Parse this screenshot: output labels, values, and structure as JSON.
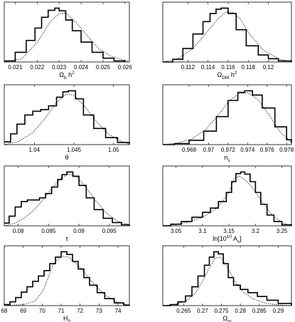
{
  "chart_data": [
    {
      "type": "line",
      "xlabel": "Ω_b h^2",
      "xlabel_parts": {
        "base": "Ω",
        "sub": "b",
        "rest": " h",
        "sup": "2"
      },
      "xlim": [
        0.0205,
        0.0262
      ],
      "xticks": [
        0.021,
        0.022,
        0.023,
        0.024,
        0.025,
        0.026
      ],
      "xtick_labels": [
        "0.021",
        "0.022",
        "0.023",
        "0.024",
        "0.025",
        "0.026"
      ],
      "series": [
        {
          "style": "solid-step",
          "x": [
            0.0205,
            0.021,
            0.0215,
            0.0219,
            0.0222,
            0.0225,
            0.0228,
            0.023,
            0.0233,
            0.0236,
            0.024,
            0.0245,
            0.025,
            0.0255,
            0.026
          ],
          "y": [
            0.02,
            0.18,
            0.4,
            0.63,
            0.83,
            0.96,
            1.0,
            0.95,
            0.78,
            0.58,
            0.37,
            0.18,
            0.07,
            0.02,
            0.0
          ]
        },
        {
          "style": "dotted",
          "x": [
            0.0205,
            0.0213,
            0.022,
            0.0226,
            0.023,
            0.0233,
            0.0238,
            0.0243,
            0.0248,
            0.0253,
            0.0258,
            0.0262
          ],
          "y": [
            0.0,
            0.06,
            0.36,
            0.75,
            0.9,
            0.91,
            0.72,
            0.48,
            0.25,
            0.12,
            0.05,
            0.01
          ]
        }
      ]
    },
    {
      "type": "line",
      "xlabel": "Ω_DM h^2",
      "xlabel_parts": {
        "base": "Ω",
        "sub": "DM",
        "rest": " h",
        "sup": "2"
      },
      "xlim": [
        0.1095,
        0.1223
      ],
      "xticks": [
        0.112,
        0.114,
        0.116,
        0.118,
        0.12
      ],
      "xtick_labels": [
        "0.112",
        "0.114",
        "0.116",
        "0.118",
        "0.12"
      ],
      "series": [
        {
          "style": "solid-step",
          "x": [
            0.1095,
            0.1105,
            0.1115,
            0.1125,
            0.1135,
            0.1142,
            0.1148,
            0.1153,
            0.116,
            0.1168,
            0.1178,
            0.119,
            0.12,
            0.121,
            0.1223
          ],
          "y": [
            0.0,
            0.05,
            0.25,
            0.52,
            0.75,
            0.9,
            0.98,
            1.0,
            0.9,
            0.6,
            0.3,
            0.13,
            0.06,
            0.02,
            0.0
          ]
        },
        {
          "style": "dotted",
          "x": [
            0.1095,
            0.111,
            0.1125,
            0.114,
            0.115,
            0.1158,
            0.1165,
            0.1172,
            0.1182,
            0.1195,
            0.121,
            0.1223
          ],
          "y": [
            0.0,
            0.06,
            0.25,
            0.58,
            0.8,
            0.93,
            0.92,
            0.8,
            0.5,
            0.22,
            0.06,
            0.0
          ]
        }
      ]
    },
    {
      "type": "line",
      "xlabel": "θ",
      "xlabel_parts": {
        "base": "θ",
        "sub": "",
        "rest": "",
        "sup": ""
      },
      "xlim": [
        1.0362,
        1.052
      ],
      "xticks": [
        1.04,
        1.045,
        1.05
      ],
      "xtick_labels": [
        "1.04",
        "1.045",
        "1.05"
      ],
      "series": [
        {
          "style": "solid-step",
          "x": [
            1.0362,
            1.037,
            1.0378,
            1.0388,
            1.0398,
            1.0408,
            1.0418,
            1.0428,
            1.0436,
            1.0443,
            1.0452,
            1.0462,
            1.0475,
            1.049,
            1.0505,
            1.052
          ],
          "y": [
            0.05,
            0.2,
            0.38,
            0.55,
            0.62,
            0.65,
            0.72,
            0.88,
            0.98,
            1.0,
            0.85,
            0.55,
            0.3,
            0.13,
            0.04,
            0.0
          ]
        },
        {
          "style": "dotted",
          "x": [
            1.0362,
            1.038,
            1.0398,
            1.0413,
            1.0428,
            1.044,
            1.045,
            1.0465,
            1.048,
            1.0495,
            1.051,
            1.052
          ],
          "y": [
            0.0,
            0.06,
            0.22,
            0.48,
            0.78,
            0.94,
            0.92,
            0.68,
            0.4,
            0.18,
            0.06,
            0.01
          ]
        }
      ]
    },
    {
      "type": "line",
      "xlabel": "n_s",
      "xlabel_parts": {
        "base": "n",
        "sub": "s",
        "rest": "",
        "sup": ""
      },
      "xlim": [
        0.9653,
        0.9785
      ],
      "xticks": [
        0.968,
        0.97,
        0.972,
        0.974,
        0.976,
        0.978
      ],
      "xtick_labels": [
        "0.968",
        "0.97",
        "0.972",
        "0.974",
        "0.976",
        "0.978"
      ],
      "series": [
        {
          "style": "solid-step",
          "x": [
            0.9653,
            0.9665,
            0.968,
            0.9695,
            0.9708,
            0.972,
            0.973,
            0.9737,
            0.9745,
            0.9755,
            0.9768,
            0.978,
            0.9785
          ],
          "y": [
            0.0,
            0.02,
            0.08,
            0.25,
            0.52,
            0.82,
            0.97,
            1.0,
            0.92,
            0.68,
            0.33,
            0.09,
            0.03
          ]
        },
        {
          "style": "dotted",
          "x": [
            0.9653,
            0.9668,
            0.9682,
            0.9697,
            0.971,
            0.9722,
            0.9732,
            0.974,
            0.975,
            0.9762,
            0.9774,
            0.9785
          ],
          "y": [
            0.0,
            0.03,
            0.1,
            0.28,
            0.55,
            0.83,
            0.95,
            0.96,
            0.85,
            0.55,
            0.22,
            0.05
          ]
        }
      ]
    },
    {
      "type": "line",
      "xlabel": "τ",
      "xlabel_parts": {
        "base": "τ",
        "sub": "",
        "rest": "",
        "sup": ""
      },
      "xlim": [
        0.0777,
        0.0983
      ],
      "xticks": [
        0.08,
        0.085,
        0.09,
        0.095
      ],
      "xtick_labels": [
        "0.08",
        "0.085",
        "0.09",
        "0.095"
      ],
      "series": [
        {
          "style": "solid-step",
          "x": [
            0.0777,
            0.0785,
            0.0795,
            0.0805,
            0.0815,
            0.0825,
            0.0835,
            0.0845,
            0.0855,
            0.0865,
            0.0872,
            0.088,
            0.089,
            0.09,
            0.0912,
            0.0925,
            0.094,
            0.0955,
            0.097,
            0.0983
          ],
          "y": [
            0.05,
            0.18,
            0.35,
            0.45,
            0.48,
            0.48,
            0.52,
            0.6,
            0.72,
            0.86,
            0.95,
            1.0,
            0.92,
            0.75,
            0.52,
            0.3,
            0.14,
            0.06,
            0.02,
            0.0
          ]
        },
        {
          "style": "dotted",
          "x": [
            0.0777,
            0.0795,
            0.0812,
            0.0828,
            0.0842,
            0.0856,
            0.087,
            0.0882,
            0.0895,
            0.091,
            0.0928,
            0.0945,
            0.0963,
            0.0983
          ],
          "y": [
            0.0,
            0.05,
            0.16,
            0.32,
            0.5,
            0.7,
            0.88,
            0.96,
            0.92,
            0.74,
            0.46,
            0.24,
            0.09,
            0.02
          ]
        }
      ]
    },
    {
      "type": "line",
      "xlabel": "ln[10^10 A_s]",
      "xlabel_parts": {
        "base": "ln[10",
        "sup": "10",
        "mid": " A",
        "sub": "s",
        "rest": "]"
      },
      "xlim": [
        3.025,
        3.268
      ],
      "xticks": [
        3.05,
        3.1,
        3.15,
        3.2,
        3.25
      ],
      "xtick_labels": [
        "3.05",
        "3.1",
        "3.15",
        "3.2",
        "3.25"
      ],
      "series": [
        {
          "style": "solid-step",
          "x": [
            3.025,
            3.04,
            3.06,
            3.08,
            3.1,
            3.115,
            3.13,
            3.145,
            3.155,
            3.163,
            3.172,
            3.18,
            3.19,
            3.2,
            3.21,
            3.222,
            3.235,
            3.25,
            3.268
          ],
          "y": [
            0.0,
            0.03,
            0.08,
            0.16,
            0.25,
            0.33,
            0.45,
            0.62,
            0.82,
            0.97,
            1.0,
            0.96,
            0.82,
            0.62,
            0.4,
            0.2,
            0.08,
            0.02,
            0.0
          ]
        },
        {
          "style": "dotted",
          "x": [
            3.025,
            3.045,
            3.07,
            3.095,
            3.115,
            3.13,
            3.14,
            3.15,
            3.16,
            3.17,
            3.18,
            3.195,
            3.21,
            3.23,
            3.25,
            3.268
          ],
          "y": [
            0.0,
            0.02,
            0.06,
            0.14,
            0.24,
            0.36,
            0.48,
            0.62,
            0.88,
            0.92,
            0.86,
            0.7,
            0.48,
            0.22,
            0.06,
            0.0
          ]
        }
      ]
    },
    {
      "type": "line",
      "xlabel": "H_0",
      "xlabel_parts": {
        "base": "H",
        "sub": "0",
        "rest": "",
        "sup": ""
      },
      "xlim": [
        68.0,
        74.6
      ],
      "xticks": [
        68,
        69,
        70,
        71,
        72,
        73,
        74
      ],
      "xtick_labels": [
        "68",
        "69",
        "70",
        "71",
        "72",
        "73",
        "74"
      ],
      "series": [
        {
          "style": "solid-step",
          "x": [
            68.0,
            68.3,
            68.6,
            68.9,
            69.2,
            69.5,
            69.8,
            70.1,
            70.4,
            70.7,
            71.0,
            71.3,
            71.6,
            71.9,
            72.2,
            72.5,
            72.9,
            73.3,
            73.8,
            74.3,
            74.6
          ],
          "y": [
            0.02,
            0.07,
            0.15,
            0.25,
            0.35,
            0.45,
            0.55,
            0.65,
            0.78,
            0.9,
            1.0,
            0.95,
            0.82,
            0.68,
            0.52,
            0.38,
            0.24,
            0.13,
            0.05,
            0.01,
            0.0
          ]
        },
        {
          "style": "dotted",
          "x": [
            68.0,
            69.0,
            69.6,
            70.0,
            70.3,
            70.6,
            71.0,
            71.4,
            71.8,
            72.3,
            72.8,
            73.3,
            73.9,
            74.6
          ],
          "y": [
            0.0,
            0.02,
            0.08,
            0.25,
            0.5,
            0.78,
            0.92,
            0.9,
            0.78,
            0.58,
            0.38,
            0.2,
            0.07,
            0.01
          ]
        }
      ]
    },
    {
      "type": "line",
      "xlabel": "Ω_m",
      "xlabel_parts": {
        "base": "Ω",
        "sub": "m",
        "rest": "",
        "sup": ""
      },
      "xlim": [
        0.2595,
        0.2935
      ],
      "xticks": [
        0.265,
        0.27,
        0.275,
        0.28,
        0.285,
        0.29
      ],
      "xtick_labels": [
        "0.265",
        "0.27",
        "0.275",
        "0.28",
        "0.285",
        "0.29"
      ],
      "series": [
        {
          "style": "solid-step",
          "x": [
            0.2595,
            0.2615,
            0.2635,
            0.2655,
            0.2672,
            0.2688,
            0.2705,
            0.2718,
            0.273,
            0.2742,
            0.2755,
            0.2768,
            0.2782,
            0.28,
            0.282,
            0.2845,
            0.287,
            0.29,
            0.2935
          ],
          "y": [
            0.0,
            0.02,
            0.07,
            0.18,
            0.35,
            0.55,
            0.75,
            0.9,
            1.0,
            0.96,
            0.78,
            0.52,
            0.38,
            0.3,
            0.24,
            0.17,
            0.1,
            0.04,
            0.0
          ]
        },
        {
          "style": "dotted",
          "x": [
            0.2595,
            0.2625,
            0.2655,
            0.268,
            0.27,
            0.2718,
            0.2733,
            0.2748,
            0.2765,
            0.2785,
            0.2808,
            0.2835,
            0.2865,
            0.29,
            0.2935
          ],
          "y": [
            0.0,
            0.02,
            0.08,
            0.22,
            0.45,
            0.7,
            0.88,
            0.9,
            0.72,
            0.45,
            0.25,
            0.12,
            0.05,
            0.01,
            0.0
          ]
        }
      ]
    }
  ]
}
